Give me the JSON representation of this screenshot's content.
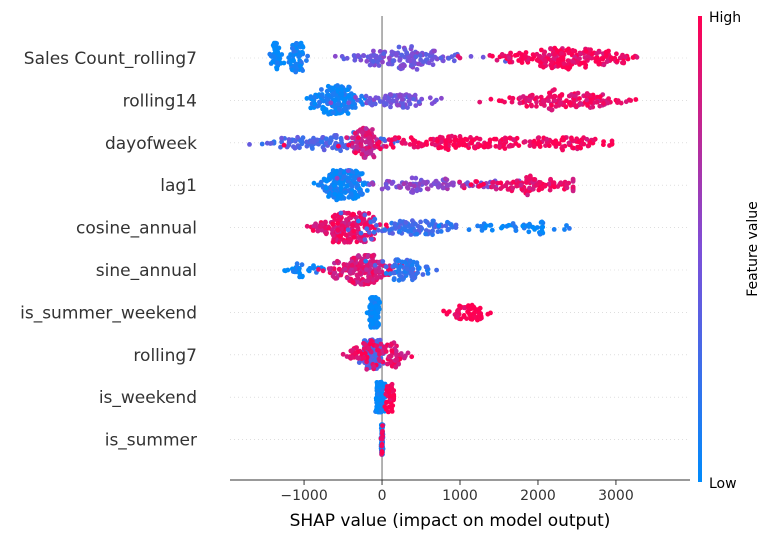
{
  "chart_data": {
    "type": "scatter",
    "subtype": "shap-beeswarm",
    "title": "",
    "xlabel": "SHAP value (impact on model output)",
    "xlim": [
      -1950,
      3950
    ],
    "xticks": [
      -1000,
      0,
      1000,
      2000,
      3000
    ],
    "xtick_labels": [
      "−1000",
      "0",
      "1000",
      "2000",
      "3000"
    ],
    "zero_line": 0,
    "grid": false,
    "colorbar": {
      "label": "Feature value",
      "high_label": "High",
      "low_label": "Low",
      "low_color": "#008bfb",
      "high_color": "#ff0052"
    },
    "features": [
      {
        "name": "Sales Count_rolling7",
        "range": [
          -1450,
          3600
        ],
        "clusters": [
          {
            "x": -1350,
            "s": 45,
            "n": 50,
            "hue": 0.0
          },
          {
            "x": -1100,
            "s": 55,
            "n": 70,
            "hue": 0.05
          },
          {
            "x": 250,
            "s": 350,
            "n": 150,
            "hue": 0.45
          },
          {
            "x": 2400,
            "s": 420,
            "n": 220,
            "hue": 0.95
          }
        ]
      },
      {
        "name": "rolling14",
        "range": [
          -1200,
          3300
        ],
        "clusters": [
          {
            "x": -600,
            "s": 150,
            "n": 180,
            "hue": 0.05
          },
          {
            "x": 200,
            "s": 300,
            "n": 80,
            "hue": 0.45
          },
          {
            "x": 2300,
            "s": 400,
            "n": 150,
            "hue": 0.92
          }
        ]
      },
      {
        "name": "dayofweek",
        "range": [
          -1700,
          2950
        ],
        "clusters": [
          {
            "x": -800,
            "s": 380,
            "n": 120,
            "hue": 0.3
          },
          {
            "x": -200,
            "s": 90,
            "n": 90,
            "hue": 0.8
          },
          {
            "x": 1000,
            "s": 600,
            "n": 170,
            "hue": 0.98
          },
          {
            "x": 2400,
            "s": 250,
            "n": 60,
            "hue": 0.95
          }
        ]
      },
      {
        "name": "lag1",
        "range": [
          -1300,
          2450
        ],
        "clusters": [
          {
            "x": -500,
            "s": 140,
            "n": 200,
            "hue": 0.05
          },
          {
            "x": 500,
            "s": 450,
            "n": 90,
            "hue": 0.55
          },
          {
            "x": 1900,
            "s": 350,
            "n": 110,
            "hue": 0.92
          }
        ]
      },
      {
        "name": "cosine_annual",
        "range": [
          -1050,
          2500
        ],
        "clusters": [
          {
            "x": -450,
            "s": 200,
            "n": 200,
            "hue": 0.9
          },
          {
            "x": 400,
            "s": 350,
            "n": 100,
            "hue": 0.25
          },
          {
            "x": 1700,
            "s": 400,
            "n": 50,
            "hue": 0.05
          }
        ]
      },
      {
        "name": "sine_annual",
        "range": [
          -1250,
          700
        ],
        "clusters": [
          {
            "x": -1000,
            "s": 120,
            "n": 30,
            "hue": 0.05
          },
          {
            "x": -250,
            "s": 200,
            "n": 200,
            "hue": 0.85
          },
          {
            "x": 300,
            "s": 150,
            "n": 80,
            "hue": 0.2
          }
        ]
      },
      {
        "name": "is_summer_weekend",
        "range": [
          -200,
          1550
        ],
        "clusters": [
          {
            "x": -100,
            "s": 30,
            "n": 180,
            "hue": 0.0
          },
          {
            "x": 1100,
            "s": 120,
            "n": 60,
            "hue": 1.0
          }
        ]
      },
      {
        "name": "rolling7",
        "range": [
          -500,
          380
        ],
        "clusters": [
          {
            "x": -120,
            "s": 60,
            "n": 150,
            "hue": 0.3
          },
          {
            "x": -250,
            "s": 150,
            "n": 50,
            "hue": 0.95
          },
          {
            "x": 150,
            "s": 120,
            "n": 60,
            "hue": 0.9
          }
        ]
      },
      {
        "name": "is_weekend",
        "range": [
          -100,
          150
        ],
        "clusters": [
          {
            "x": -20,
            "s": 25,
            "n": 170,
            "hue": 0.0
          },
          {
            "x": 100,
            "s": 30,
            "n": 50,
            "hue": 1.0
          }
        ]
      },
      {
        "name": "is_summer",
        "range": [
          -30,
          30
        ],
        "clusters": [
          {
            "x": 0,
            "s": 5,
            "n": 120,
            "hue": 0.1
          },
          {
            "x": 0,
            "s": 5,
            "n": 15,
            "hue": 1.0
          }
        ]
      }
    ]
  }
}
